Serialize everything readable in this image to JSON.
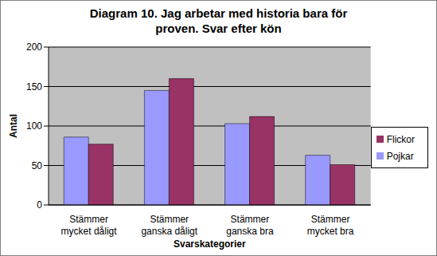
{
  "chart_data": {
    "type": "bar",
    "title": "Diagram 10. Jag arbetar med historia bara för proven. Svar efter kön",
    "x_label": "Svarskategorier",
    "y_label": "Antal",
    "categories": [
      "Stämmer mycket dåligt",
      "Stämmer ganska dåligt",
      "Stämmer ganska bra",
      "Stämmer mycket bra"
    ],
    "series": [
      {
        "name": "Pojkar",
        "color": "#9999ff",
        "values": [
          86,
          145,
          103,
          63
        ]
      },
      {
        "name": "Flickor",
        "color": "#993366",
        "values": [
          77,
          160,
          112,
          51
        ]
      }
    ],
    "ylim": [
      0,
      200
    ],
    "yticks": [
      0,
      50,
      100,
      150,
      200
    ],
    "grid": true,
    "legend": "right"
  }
}
